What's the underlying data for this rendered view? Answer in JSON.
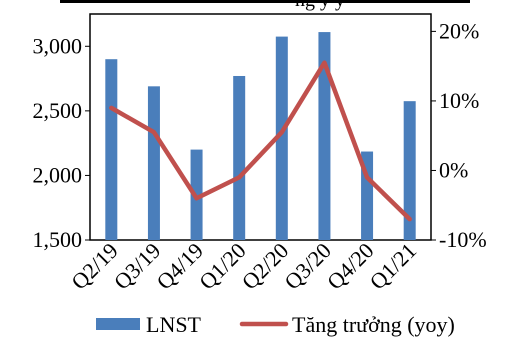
{
  "chart_data": {
    "type": "bar",
    "categories": [
      "Q2/19",
      "Q3/19",
      "Q4/19",
      "Q1/20",
      "Q2/20",
      "Q3/20",
      "Q4/20",
      "Q1/21"
    ],
    "series": [
      {
        "name": "LNST",
        "type": "bar",
        "axis": "left",
        "color": "#4a7ebb",
        "values": [
          2900,
          2690,
          2200,
          2770,
          3075,
          3110,
          2185,
          2575
        ]
      },
      {
        "name": "Tăng trưởng (yoy)",
        "type": "line",
        "axis": "right",
        "color": "#c0504d",
        "values": [
          9,
          5.5,
          -4,
          -1,
          5.5,
          15.5,
          -1,
          -7
        ]
      }
    ],
    "y_left": {
      "ylim": [
        1500,
        3250
      ],
      "ticks": [
        1500,
        2000,
        2500,
        3000
      ],
      "tick_labels": [
        "1,500",
        "2,000",
        "2,500",
        "3,000"
      ]
    },
    "y_right": {
      "ylim": [
        -10,
        22.5
      ],
      "ticks": [
        -10,
        0,
        10,
        20
      ],
      "tick_labels": [
        "-10%",
        "0%",
        "10%",
        "20%"
      ]
    },
    "grid": false,
    "legend_position": "bottom",
    "top_partial_text": "ng  y y"
  }
}
